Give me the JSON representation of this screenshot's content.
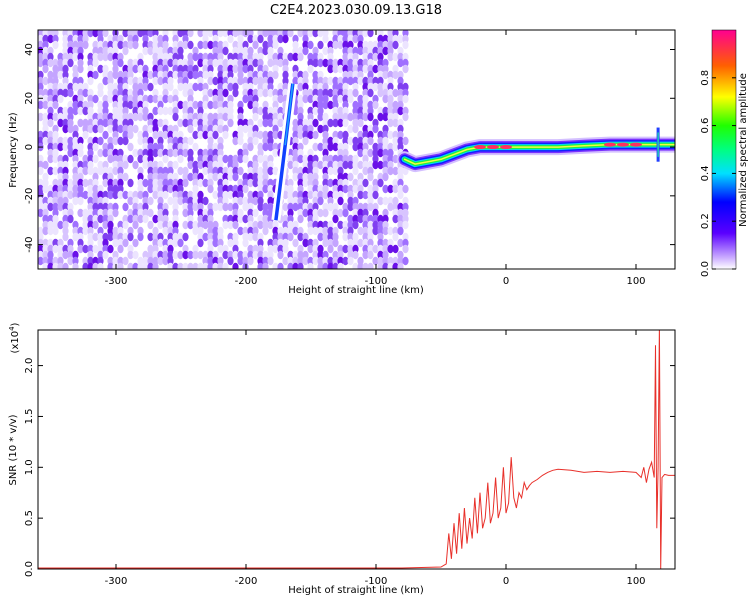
{
  "title": "C2E4.2023.030.09.13.G18",
  "chart_data": [
    {
      "type": "heatmap",
      "xlabel": "Height of straight line (km)",
      "ylabel": "Frequency (Hz)",
      "xlim": [
        -360,
        130
      ],
      "ylim": [
        -50,
        48
      ],
      "xticks": [
        -300,
        -200,
        -100,
        0,
        100
      ],
      "yticks": [
        -40,
        -20,
        0,
        20,
        40
      ],
      "noise_region_x": [
        -360,
        -78
      ],
      "signal_track": [
        {
          "x": -78,
          "y": -5
        },
        {
          "x": -70,
          "y": -7
        },
        {
          "x": -60,
          "y": -6
        },
        {
          "x": -50,
          "y": -5
        },
        {
          "x": -40,
          "y": -3
        },
        {
          "x": -30,
          "y": -1
        },
        {
          "x": -20,
          "y": 0
        },
        {
          "x": -10,
          "y": 0
        },
        {
          "x": 0,
          "y": 0
        },
        {
          "x": 20,
          "y": 0
        },
        {
          "x": 40,
          "y": 0
        },
        {
          "x": 60,
          "y": 0.5
        },
        {
          "x": 80,
          "y": 1
        },
        {
          "x": 100,
          "y": 1
        },
        {
          "x": 115,
          "y": 1
        },
        {
          "x": 130,
          "y": 1
        }
      ],
      "streak": {
        "x1": -177,
        "y1": -30,
        "x2": -164,
        "y2": 26
      },
      "colorbar": {
        "label": "Normalized spectral amplitude",
        "ticks": [
          0.0,
          0.2,
          0.4,
          0.6,
          0.8
        ],
        "range": [
          0,
          1
        ]
      }
    },
    {
      "type": "line",
      "xlabel": "Height of straight line (km)",
      "ylabel": "SNR (10 * v/v)",
      "scale_note": "(x10",
      "scale_exp": "4",
      "scale_close": ")",
      "xlim": [
        -360,
        130
      ],
      "ylim": [
        0,
        2.35
      ],
      "xticks": [
        -300,
        -200,
        -100,
        0,
        100
      ],
      "yticks": [
        0.0,
        0.5,
        1.0,
        1.5,
        2.0
      ],
      "color": "#e8302a",
      "series": [
        {
          "x": [
            -360,
            -300,
            -250,
            -200,
            -150,
            -100,
            -80,
            -50,
            -46,
            -44,
            -42,
            -40,
            -38,
            -36,
            -34,
            -32,
            -30,
            -28,
            -26,
            -24,
            -22,
            -20,
            -18,
            -16,
            -14,
            -12,
            -10,
            -8,
            -6,
            -4,
            -2,
            0,
            2,
            4,
            6,
            8,
            10,
            12,
            14,
            16,
            18,
            20,
            24,
            28,
            32,
            36,
            40,
            50,
            60,
            70,
            80,
            90,
            100,
            104,
            106,
            108,
            110,
            112,
            114,
            115,
            116,
            117,
            118,
            119,
            120,
            122,
            125,
            130
          ],
          "y": [
            0.01,
            0.01,
            0.01,
            0.01,
            0.01,
            0.01,
            0.01,
            0.02,
            0.05,
            0.35,
            0.1,
            0.45,
            0.15,
            0.55,
            0.2,
            0.6,
            0.25,
            0.5,
            0.3,
            0.7,
            0.35,
            0.75,
            0.4,
            0.5,
            0.85,
            0.45,
            0.55,
            0.9,
            0.5,
            0.6,
            1.0,
            0.55,
            0.65,
            1.1,
            0.7,
            0.6,
            0.75,
            0.7,
            0.85,
            0.78,
            0.82,
            0.85,
            0.88,
            0.92,
            0.95,
            0.97,
            0.98,
            0.97,
            0.95,
            0.96,
            0.95,
            0.96,
            0.95,
            0.9,
            1.0,
            0.85,
            0.98,
            1.05,
            0.9,
            2.2,
            0.4,
            1.0,
            2.4,
            0.0,
            0.9,
            0.93,
            0.92,
            0.92
          ]
        }
      ]
    }
  ]
}
